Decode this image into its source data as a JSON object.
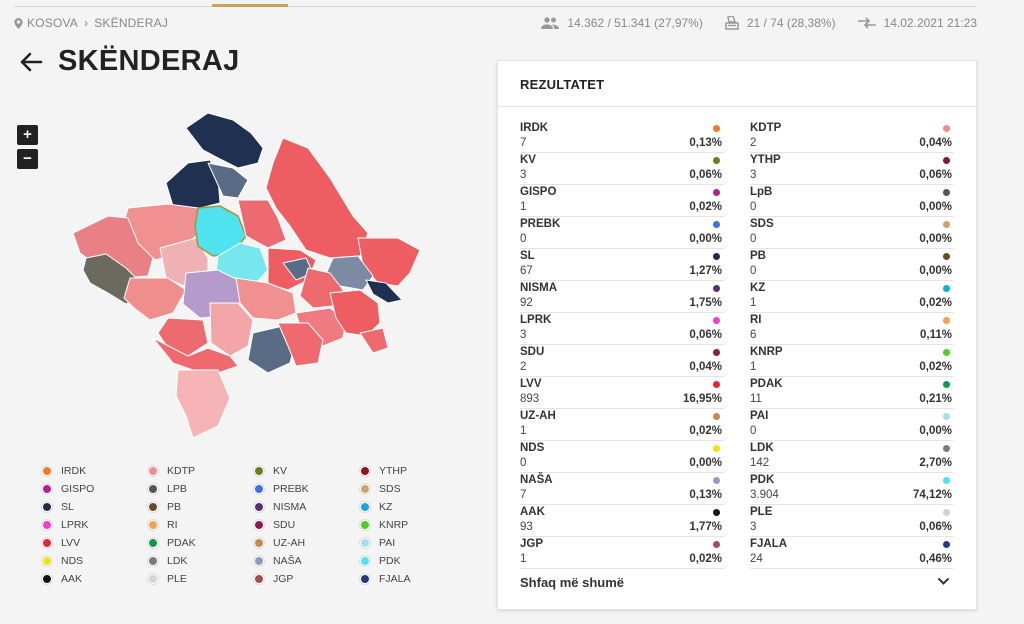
{
  "breadcrumb": {
    "root": "KOSOVA",
    "current": "SKËNDERAJ"
  },
  "stats": {
    "turnout": "14.362 / 51.341 (27,97%)",
    "stations": "21 / 74 (28,38%)",
    "updated": "14.02.2021 21:23"
  },
  "page_title": "SKËNDERAJ",
  "zoom": {
    "in": "+",
    "out": "−"
  },
  "legend": [
    {
      "label": "IRDK",
      "color": "#f07a2c"
    },
    {
      "label": "KDTP",
      "color": "#f08d8d"
    },
    {
      "label": "KV",
      "color": "#6f7d1c"
    },
    {
      "label": "YTHP",
      "color": "#8e1426"
    },
    {
      "label": "GISPO",
      "color": "#b0208e"
    },
    {
      "label": "LPB",
      "color": "#555555"
    },
    {
      "label": "PREBK",
      "color": "#3d6fe0"
    },
    {
      "label": "SDS",
      "color": "#c9a46b"
    },
    {
      "label": "SL",
      "color": "#1c2f4f"
    },
    {
      "label": "PB",
      "color": "#6b4d22"
    },
    {
      "label": "NISMA",
      "color": "#5c2f73"
    },
    {
      "label": "KZ",
      "color": "#17a7d6"
    },
    {
      "label": "LPRK",
      "color": "#f03cd0"
    },
    {
      "label": "RI",
      "color": "#f5a14c"
    },
    {
      "label": "SDU",
      "color": "#8a1c4d"
    },
    {
      "label": "KNRP",
      "color": "#4ccf2a"
    },
    {
      "label": "LVV",
      "color": "#e8262f"
    },
    {
      "label": "PDAK",
      "color": "#0f9a4a"
    },
    {
      "label": "UZ-AH",
      "color": "#c5884e"
    },
    {
      "label": "PAI",
      "color": "#a8dcef"
    },
    {
      "label": "NDS",
      "color": "#f2e20f"
    },
    {
      "label": "LDK",
      "color": "#7a7a7a"
    },
    {
      "label": "NAŠA",
      "color": "#8e9abf"
    },
    {
      "label": "PDK",
      "color": "#4fe3f0"
    },
    {
      "label": "AAK",
      "color": "#111111"
    },
    {
      "label": "PLE",
      "color": "#d3d3d3"
    },
    {
      "label": "JGP",
      "color": "#a04d55"
    },
    {
      "label": "FJALA",
      "color": "#243a7a"
    }
  ],
  "panel": {
    "title": "REZULTATET",
    "results": [
      {
        "party": "IRDK",
        "votes": "7",
        "pct": "0,13%",
        "color": "#f07a2c"
      },
      {
        "party": "KDTP",
        "votes": "2",
        "pct": "0,04%",
        "color": "#f08d8d"
      },
      {
        "party": "KV",
        "votes": "3",
        "pct": "0,06%",
        "color": "#6f7d1c"
      },
      {
        "party": "YTHP",
        "votes": "3",
        "pct": "0,06%",
        "color": "#8e1426"
      },
      {
        "party": "GISPO",
        "votes": "1",
        "pct": "0,02%",
        "color": "#b0208e"
      },
      {
        "party": "LpB",
        "votes": "0",
        "pct": "0,00%",
        "color": "#555555"
      },
      {
        "party": "PREBK",
        "votes": "0",
        "pct": "0,00%",
        "color": "#3d6fe0"
      },
      {
        "party": "SDS",
        "votes": "0",
        "pct": "0,00%",
        "color": "#c9a46b"
      },
      {
        "party": "SL",
        "votes": "67",
        "pct": "1,27%",
        "color": "#1c2f4f"
      },
      {
        "party": "PB",
        "votes": "0",
        "pct": "0,00%",
        "color": "#6b4d22"
      },
      {
        "party": "NISMA",
        "votes": "92",
        "pct": "1,75%",
        "color": "#5c2f73"
      },
      {
        "party": "KZ",
        "votes": "1",
        "pct": "0,02%",
        "color": "#17a7d6"
      },
      {
        "party": "LPRK",
        "votes": "3",
        "pct": "0,06%",
        "color": "#f03cd0"
      },
      {
        "party": "RI",
        "votes": "6",
        "pct": "0,11%",
        "color": "#f5a14c"
      },
      {
        "party": "SDU",
        "votes": "2",
        "pct": "0,04%",
        "color": "#8a1c4d"
      },
      {
        "party": "KNRP",
        "votes": "1",
        "pct": "0,02%",
        "color": "#4ccf2a"
      },
      {
        "party": "LVV",
        "votes": "893",
        "pct": "16,95%",
        "color": "#e8262f"
      },
      {
        "party": "PDAK",
        "votes": "11",
        "pct": "0,21%",
        "color": "#0f9a4a"
      },
      {
        "party": "UZ-AH",
        "votes": "1",
        "pct": "0,02%",
        "color": "#c5884e"
      },
      {
        "party": "PAI",
        "votes": "0",
        "pct": "0,00%",
        "color": "#a8dcef"
      },
      {
        "party": "NDS",
        "votes": "0",
        "pct": "0,00%",
        "color": "#f2e20f"
      },
      {
        "party": "LDK",
        "votes": "142",
        "pct": "2,70%",
        "color": "#7a7a7a"
      },
      {
        "party": "NAŠA",
        "votes": "7",
        "pct": "0,13%",
        "color": "#8e9abf"
      },
      {
        "party": "PDK",
        "votes": "3.904",
        "pct": "74,12%",
        "color": "#4fe3f0"
      },
      {
        "party": "AAK",
        "votes": "93",
        "pct": "1,77%",
        "color": "#111111"
      },
      {
        "party": "PLE",
        "votes": "3",
        "pct": "0,06%",
        "color": "#d3d3d3"
      },
      {
        "party": "JGP",
        "votes": "1",
        "pct": "0,02%",
        "color": "#a04d55"
      },
      {
        "party": "FJALA",
        "votes": "24",
        "pct": "0,46%",
        "color": "#243a7a"
      }
    ],
    "show_more": "Shfaq më shumë"
  }
}
